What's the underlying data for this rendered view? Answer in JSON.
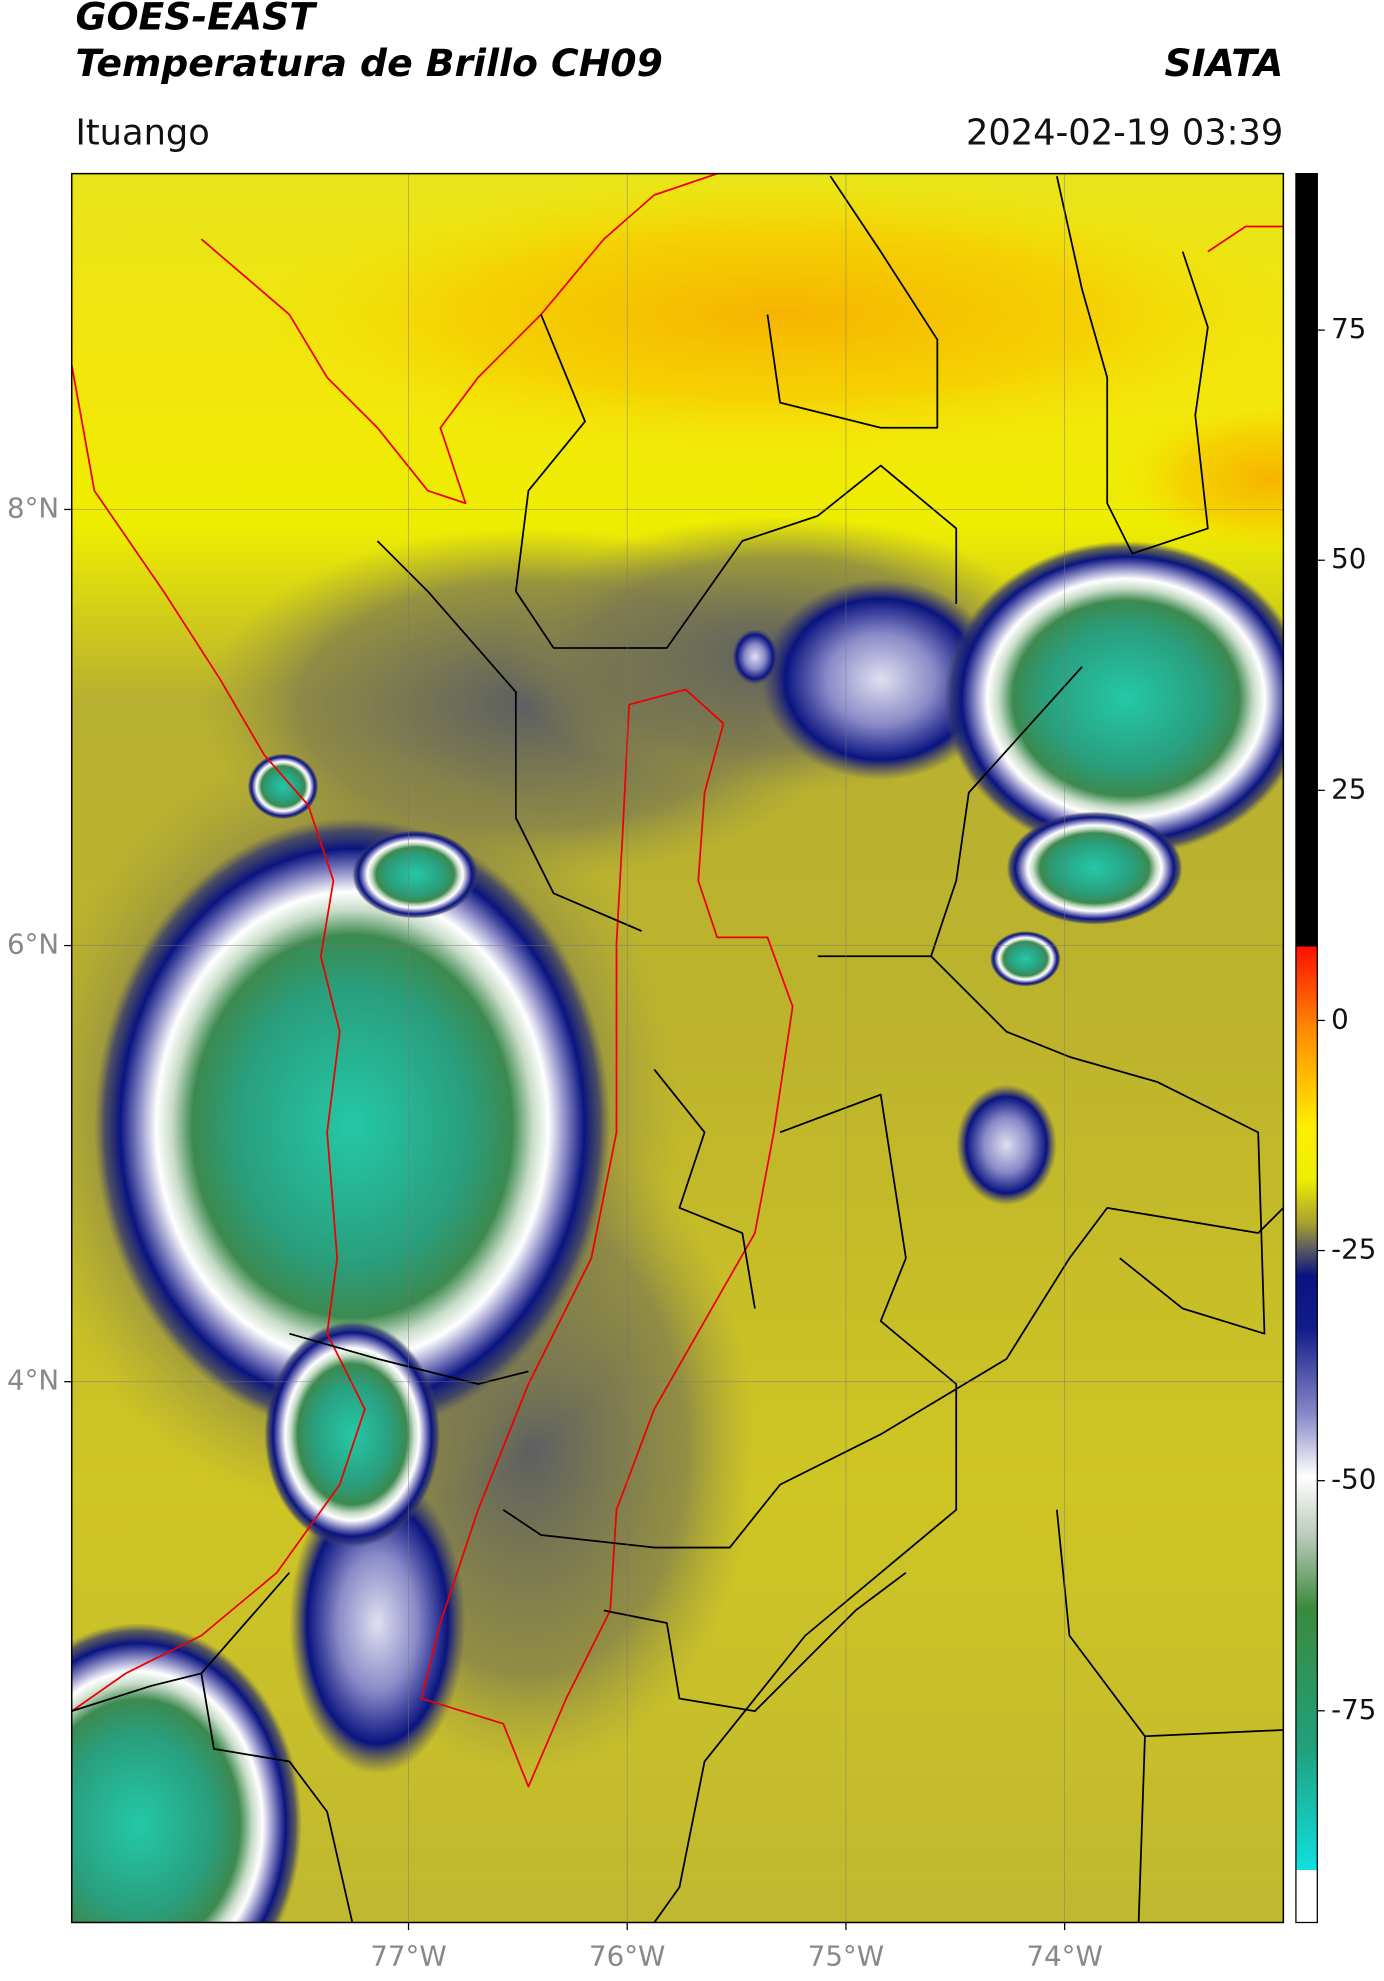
{
  "header": {
    "title": "GOES-EAST",
    "subtitle": "Temperatura de Brillo CH09",
    "brand": "SIATA",
    "location": "Ituango",
    "datetime": "2024-02-19 03:39"
  },
  "map": {
    "xlim": [
      -78.54,
      -73.0
    ],
    "ylim": [
      1.52,
      9.54
    ],
    "grid": true,
    "xticks": [
      {
        "value": -77,
        "label": "77°W"
      },
      {
        "value": -76,
        "label": "76°W"
      },
      {
        "value": -75,
        "label": "75°W"
      },
      {
        "value": -74,
        "label": "74°W"
      }
    ],
    "yticks": [
      {
        "value": 4,
        "label": "4°N"
      },
      {
        "value": 6,
        "label": "6°N"
      },
      {
        "value": 8,
        "label": "8°N"
      }
    ]
  },
  "colorbar": {
    "lim": [
      -98,
      92
    ],
    "ticks": [
      -75,
      -50,
      -25,
      0,
      25,
      50,
      75
    ]
  }
}
